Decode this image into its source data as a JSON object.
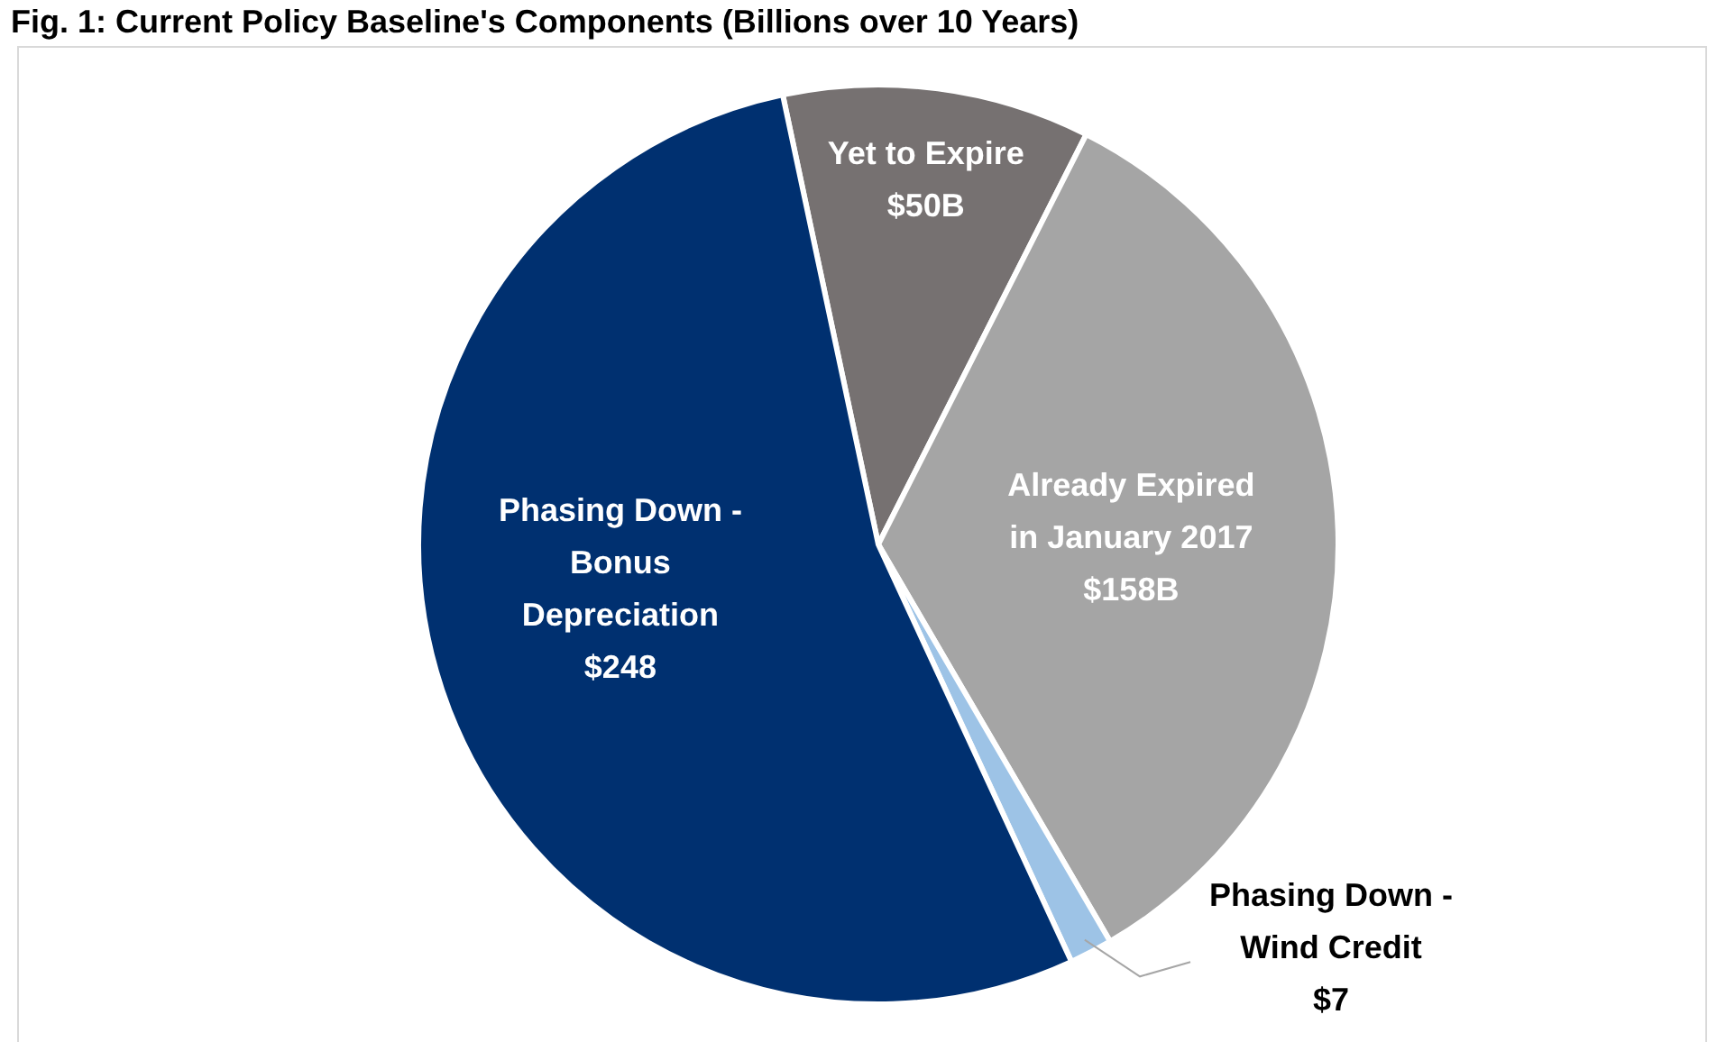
{
  "chart_data": {
    "type": "pie",
    "title": "Fig. 1: Current Policy Baseline's Components (Billions over 10 Years)",
    "categories": [
      "Yet to Expire",
      "Already Expired\nin January 2017",
      "Phasing Down -\nWind Credit",
      "Phasing Down -\nBonus\nDepreciation"
    ],
    "values": [
      50,
      158,
      7,
      248
    ],
    "value_labels": [
      "$50B",
      "$158B",
      "$7",
      "$248"
    ],
    "colors": [
      "#767171",
      "#a5a5a5",
      "#9dc3e6",
      "#003070"
    ],
    "legend": false
  }
}
